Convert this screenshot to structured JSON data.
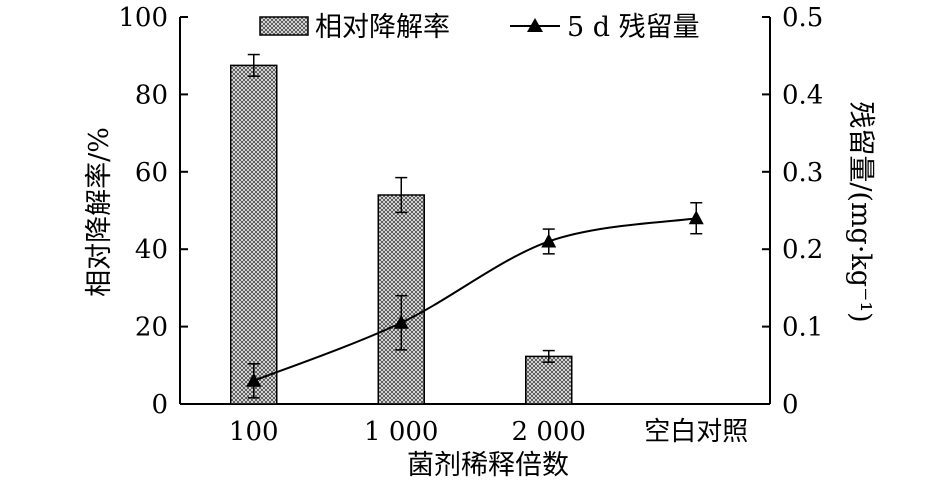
{
  "chart_data": {
    "type": "bar+line",
    "categories": [
      "100",
      "1 000",
      "2 000",
      "空白对照"
    ],
    "xlabel": "菌剂稀释倍数",
    "ylabel_left": "相对降解率/%",
    "ylabel_right": "残留量/(mg·kg⁻¹)",
    "ylim_left": [
      0,
      100
    ],
    "ylim_right": [
      0,
      0.5
    ],
    "yticks_left": [
      "0",
      "20",
      "40",
      "60",
      "80",
      "100"
    ],
    "yticks_right": [
      "0",
      "0.1",
      "0.2",
      "0.3",
      "0.4",
      "0.5"
    ],
    "series": [
      {
        "name": "相对降解率",
        "type": "bar",
        "axis": "left",
        "values": [
          87.5,
          54,
          12.3,
          null
        ],
        "errors": [
          2.8,
          4.5,
          1.5,
          null
        ],
        "pattern": "crosshatch"
      },
      {
        "name": "5 d 残留量",
        "type": "line",
        "axis": "right",
        "marker": "triangle",
        "values": [
          0.03,
          0.105,
          0.21,
          0.24
        ],
        "errors": [
          0.022,
          0.035,
          0.016,
          0.02
        ]
      }
    ],
    "legend_position": "top"
  }
}
